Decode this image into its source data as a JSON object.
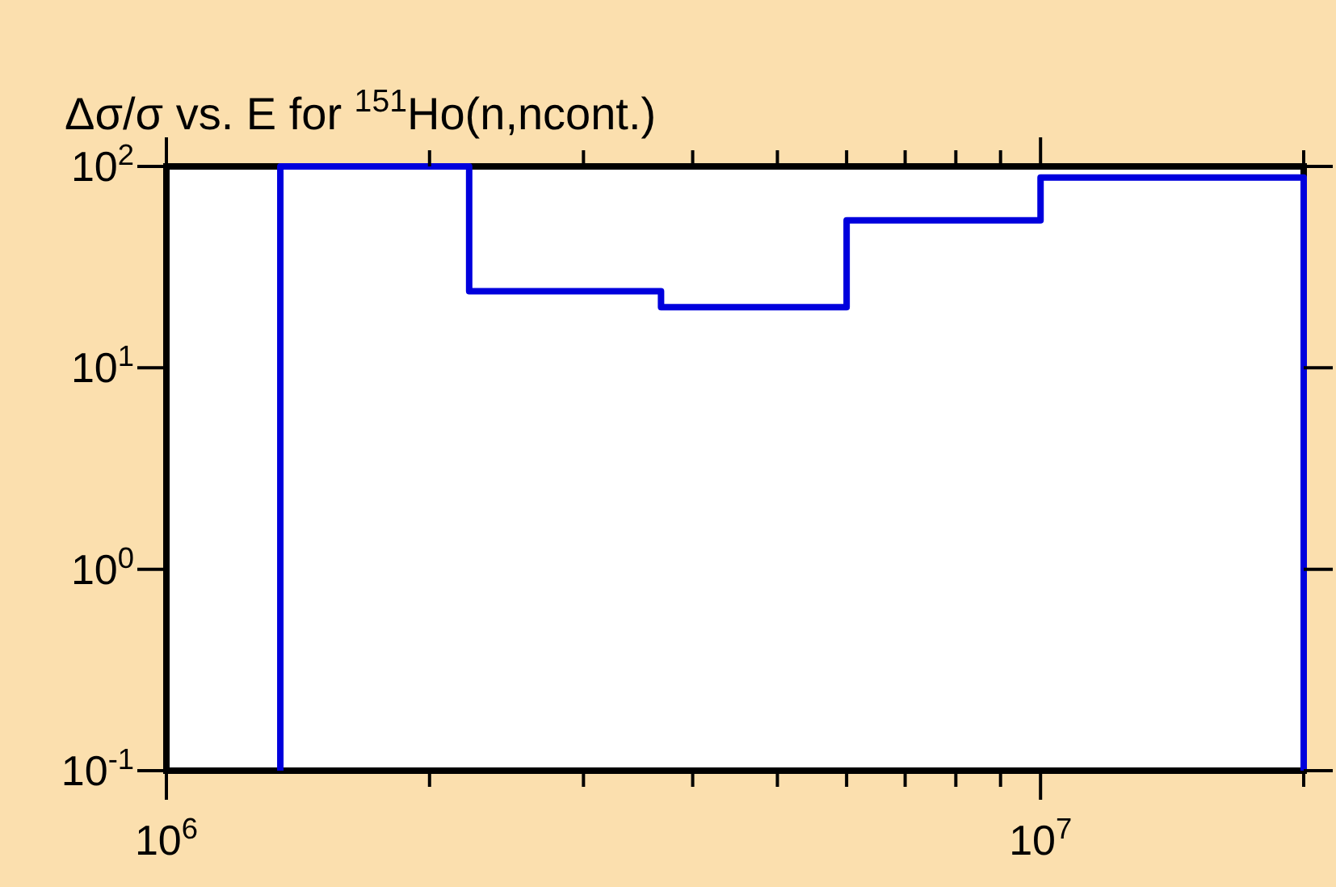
{
  "chart_data": {
    "type": "step",
    "title": "Δσ/σ vs. E for $^{151}$Ho(n,ncont.)",
    "log": "xy",
    "grid": false,
    "marker": "none",
    "line_style": "solid",
    "x": [
      1350000,
      1350000,
      2220000,
      3680000,
      6000000,
      10000000,
      20000000,
      20000000
    ],
    "series": [
      {
        "color": "#0000dd",
        "values": [
          0.1,
          100,
          24,
          20,
          54,
          88,
          88,
          0.1
        ]
      }
    ],
    "xlim": [
      1000000,
      20000000
    ],
    "xticks": [
      {
        "value": 1000000,
        "label": "10$^{6}$"
      },
      {
        "value": 2000000,
        "label": null
      },
      {
        "value": 3000000,
        "label": null
      },
      {
        "value": 4000000,
        "label": null
      },
      {
        "value": 5000000,
        "label": null
      },
      {
        "value": 6000000,
        "label": null
      },
      {
        "value": 7000000,
        "label": null
      },
      {
        "value": 8000000,
        "label": null
      },
      {
        "value": 9000000,
        "label": null
      },
      {
        "value": 10000000,
        "label": "10$^{7}$"
      },
      {
        "value": 20000000,
        "label": null
      }
    ],
    "ylim": [
      0.1,
      100
    ],
    "yticks": [
      {
        "value": 0.1,
        "label": "10$^{-1}$"
      },
      {
        "value": 1,
        "label": "10$^{0}$"
      },
      {
        "value": 10,
        "label": "10$^{1}$"
      },
      {
        "value": 100,
        "label": "10$^{2}$"
      }
    ]
  }
}
